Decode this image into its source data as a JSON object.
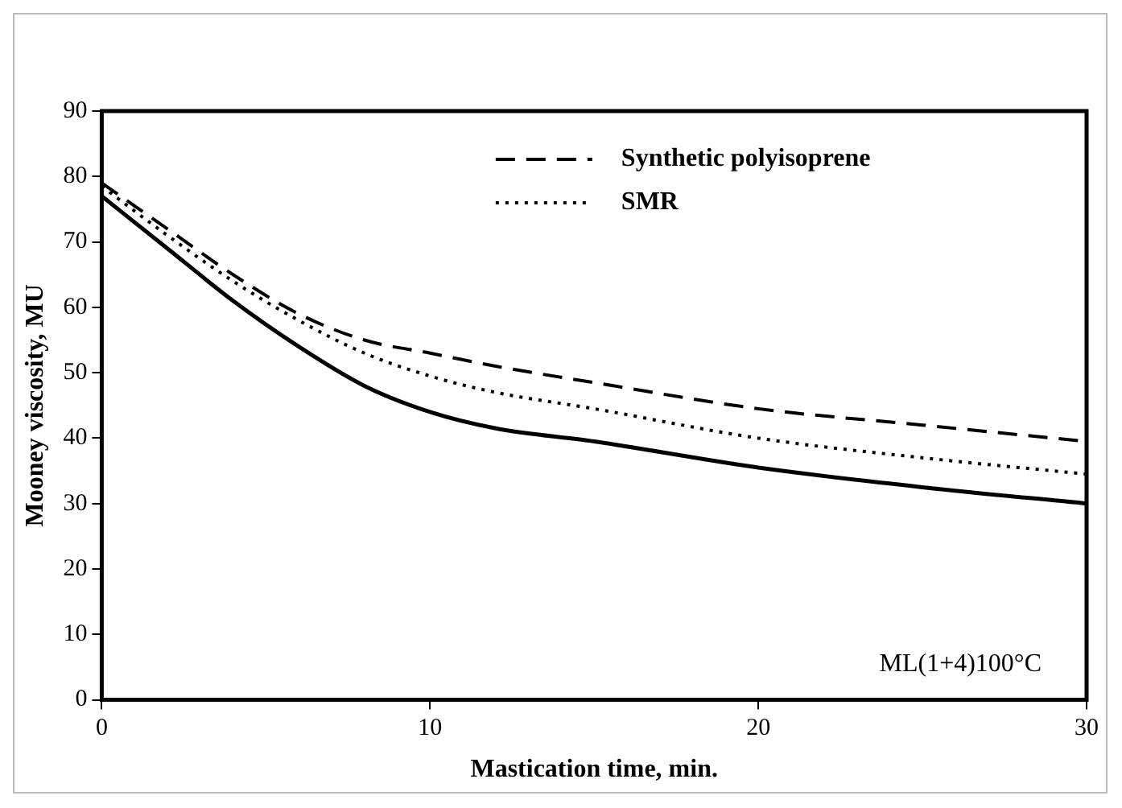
{
  "chart_data": {
    "type": "line",
    "xlabel": "Mastication time, min.",
    "ylabel": "Mooney viscosity, MU",
    "xlim": [
      0,
      30
    ],
    "xticks": [
      0,
      10,
      20,
      30
    ],
    "ylim": [
      0,
      90
    ],
    "yticks": [
      0,
      10,
      20,
      30,
      40,
      50,
      60,
      70,
      80,
      90
    ],
    "grid": false,
    "legend": "top right",
    "marker": "none",
    "annotations": [
      "ML(1+4)100°C"
    ],
    "series": [
      {
        "name": "Synthetic polyisoprene",
        "color": "#000000",
        "line_style": "dashed",
        "x": [
          0,
          2,
          4,
          6,
          8,
          10,
          12,
          15,
          20,
          25,
          30
        ],
        "values": [
          79,
          72,
          65,
          59,
          55,
          53,
          51,
          48.5,
          44.5,
          42,
          39.5
        ]
      },
      {
        "name": "SMR",
        "color": "#000000",
        "line_style": "dotted",
        "x": [
          0,
          2,
          4,
          6,
          8,
          10,
          12,
          15,
          20,
          25,
          30
        ],
        "values": [
          78.5,
          71,
          64,
          58,
          53,
          49.5,
          47,
          44.5,
          40,
          37,
          34.5
        ]
      },
      {
        "color": "#000000",
        "line_style": "solid",
        "x": [
          0,
          2,
          4,
          6,
          8,
          10,
          12,
          15,
          20,
          25,
          30
        ],
        "values": [
          77,
          69,
          61,
          54,
          48,
          44,
          41.5,
          39.5,
          35.5,
          32.5,
          30
        ]
      }
    ]
  }
}
